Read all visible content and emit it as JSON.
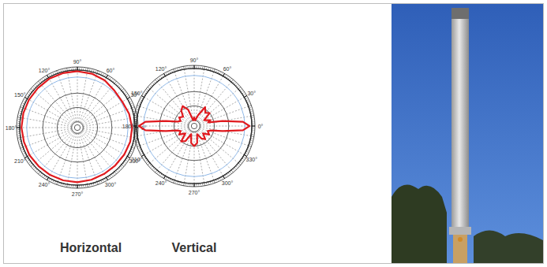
{
  "chart_data": [
    {
      "type": "polar",
      "title": "Horizontal",
      "x": [
        0,
        15,
        30,
        45,
        60,
        75,
        90,
        105,
        120,
        135,
        150,
        165,
        180,
        195,
        210,
        225,
        240,
        255,
        270,
        285,
        300,
        315,
        330,
        345
      ],
      "values": [
        0.95,
        0.93,
        0.9,
        0.91,
        0.95,
        0.97,
        0.98,
        0.98,
        0.98,
        0.97,
        0.97,
        0.97,
        0.97,
        0.96,
        0.96,
        0.95,
        0.95,
        0.95,
        0.95,
        0.94,
        0.93,
        0.93,
        0.94,
        0.95
      ],
      "color": "#e01a1f",
      "xticks": [
        {
          "value": 0,
          "label": "0°"
        },
        {
          "value": 30,
          "label": "30°"
        },
        {
          "value": 60,
          "label": "60°"
        },
        {
          "value": 90,
          "label": "90°"
        },
        {
          "value": 120,
          "label": "120°"
        },
        {
          "value": 150,
          "label": "150°"
        },
        {
          "value": 180,
          "label": "180°"
        },
        {
          "value": 210,
          "label": "210°"
        },
        {
          "value": 240,
          "label": "240°"
        },
        {
          "value": 270,
          "label": "270°"
        },
        {
          "value": 300,
          "label": "300°"
        },
        {
          "value": 330,
          "label": "330°"
        }
      ],
      "rlim": [
        0,
        1
      ],
      "rticks": [
        0.05,
        0.1,
        0.35,
        0.6,
        0.88,
        1
      ],
      "grid": true,
      "tick_labels": "x"
    },
    {
      "type": "polar",
      "title": "Vertical",
      "x": [
        0,
        5,
        10,
        15,
        20,
        30,
        40,
        50,
        60,
        70,
        80,
        90,
        100,
        110,
        120,
        130,
        140,
        150,
        160,
        165,
        170,
        175,
        180,
        185,
        190,
        195,
        200,
        210,
        220,
        230,
        240,
        250,
        260,
        270,
        280,
        290,
        300,
        310,
        320,
        330,
        340,
        345,
        350,
        355
      ],
      "values": [
        0.96,
        0.85,
        0.5,
        0.25,
        0.3,
        0.2,
        0.35,
        0.3,
        0.38,
        0.2,
        0.1,
        0.15,
        0.1,
        0.3,
        0.4,
        0.35,
        0.25,
        0.3,
        0.25,
        0.3,
        0.5,
        0.85,
        0.96,
        0.85,
        0.5,
        0.3,
        0.25,
        0.3,
        0.2,
        0.35,
        0.3,
        0.15,
        0.3,
        0.35,
        0.3,
        0.15,
        0.25,
        0.3,
        0.2,
        0.3,
        0.25,
        0.3,
        0.5,
        0.85
      ],
      "color": "#e01a1f",
      "xticks": [
        {
          "value": 0,
          "label": "0°"
        },
        {
          "value": 30,
          "label": "30°"
        },
        {
          "value": 60,
          "label": "60°"
        },
        {
          "value": 90,
          "label": "90°"
        },
        {
          "value": 120,
          "label": "120°"
        },
        {
          "value": 150,
          "label": "150°"
        },
        {
          "value": 180,
          "label": "180°"
        },
        {
          "value": 210,
          "label": "210°"
        },
        {
          "value": 240,
          "label": "240°"
        },
        {
          "value": 270,
          "label": "270°"
        },
        {
          "value": 300,
          "label": "300°"
        },
        {
          "value": 330,
          "label": "330°"
        }
      ],
      "rlim": [
        0,
        1
      ],
      "rticks": [
        0.05,
        0.1,
        0.35,
        0.6,
        0.88,
        1
      ],
      "grid": true,
      "tick_labels": "x"
    }
  ]
}
